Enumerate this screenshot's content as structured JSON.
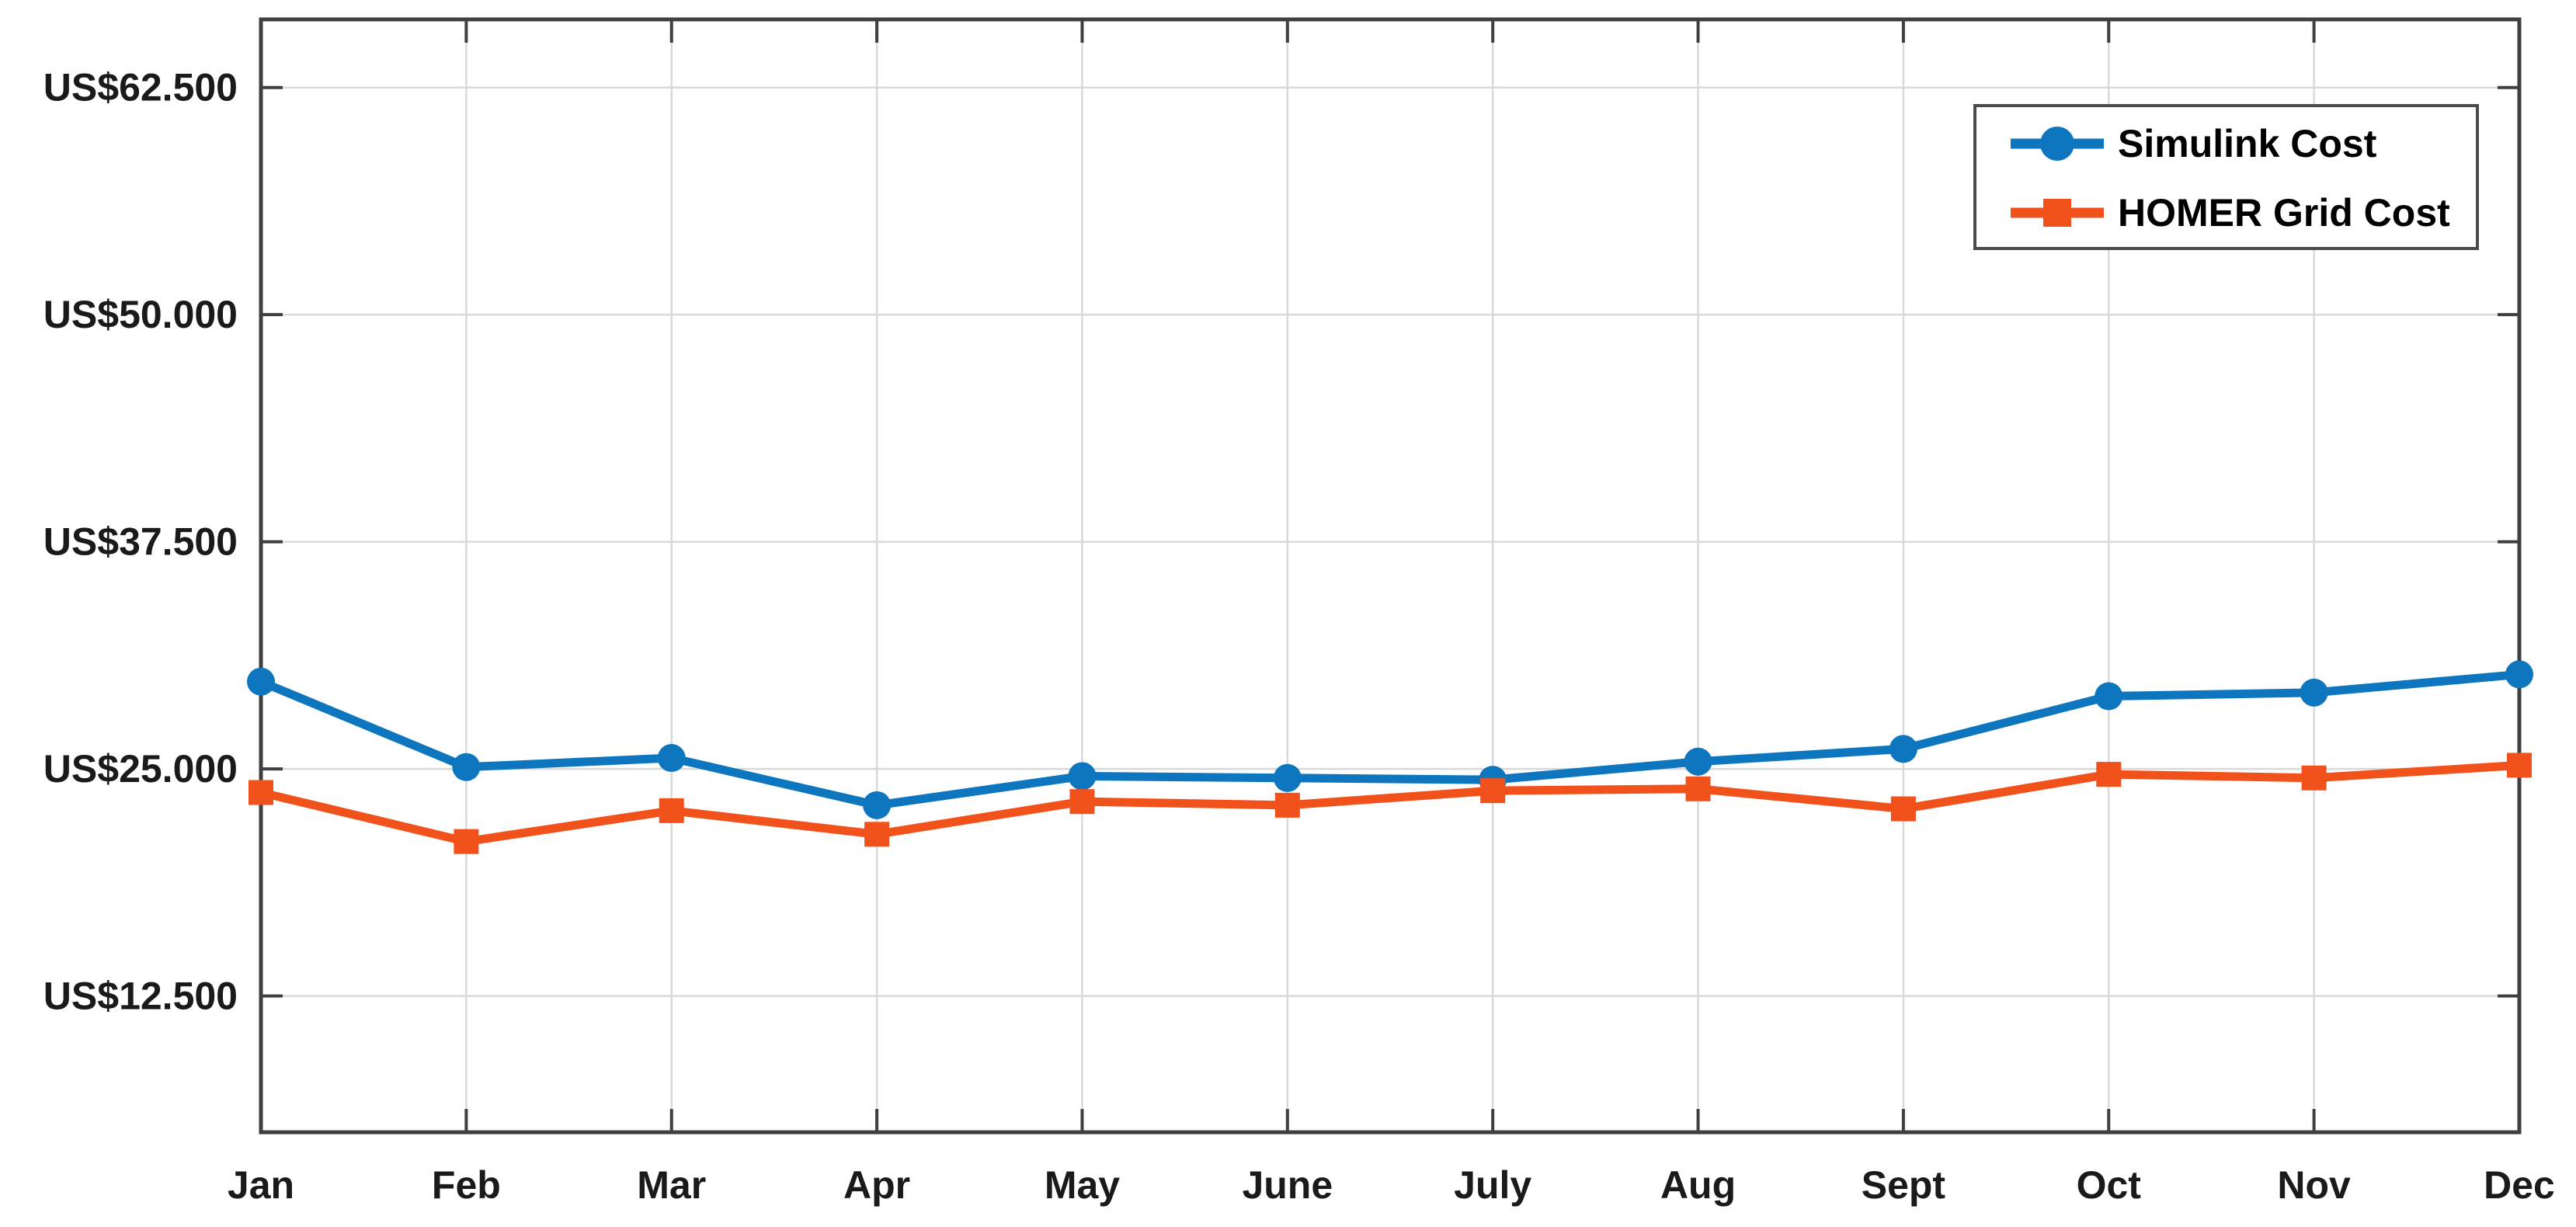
{
  "chart_data": {
    "type": "line",
    "title": "",
    "xlabel": "",
    "ylabel": "",
    "categories": [
      "Jan",
      "Feb",
      "Mar",
      "Apr",
      "May",
      "June",
      "July",
      "Aug",
      "Sept",
      "Oct",
      "Nov",
      "Dec"
    ],
    "y_ticks": [
      {
        "value": 12500,
        "label": "US$12.500"
      },
      {
        "value": 25000,
        "label": "US$25.000"
      },
      {
        "value": 37500,
        "label": "US$37.500"
      },
      {
        "value": 50000,
        "label": "US$50.000"
      },
      {
        "value": 62500,
        "label": "US$62.500"
      }
    ],
    "ylim": [
      5000,
      66250
    ],
    "grid": true,
    "legend_position": "top-right",
    "series": [
      {
        "name": "Simulink Cost",
        "marker": "circle",
        "color": "#0e76bf",
        "values": [
          29800,
          25100,
          25600,
          23000,
          24600,
          24500,
          24400,
          25400,
          26100,
          29000,
          29200,
          30200
        ]
      },
      {
        "name": "HOMER Grid Cost",
        "marker": "square",
        "color": "#f1511b",
        "values": [
          23700,
          21000,
          22700,
          21400,
          23200,
          23000,
          23800,
          23900,
          22800,
          24700,
          24500,
          25200
        ]
      }
    ]
  },
  "colors": {
    "background": "#ffffff",
    "grid": "#d9d9d9",
    "axis": "#3f3f3f",
    "tick_label": "#1a1a1a",
    "legend_border": "#4a4a4a",
    "legend_text": "#000000"
  }
}
